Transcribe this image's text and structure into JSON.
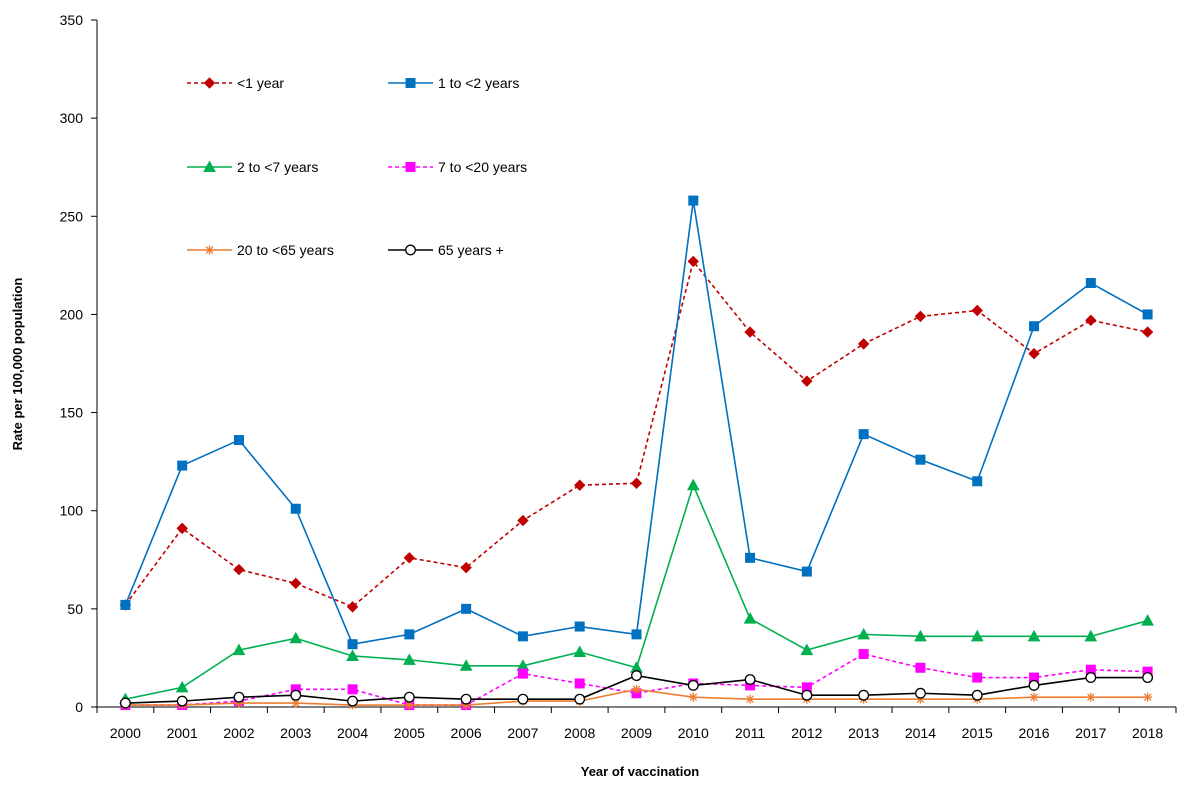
{
  "chart_data": {
    "type": "line",
    "title": "",
    "xlabel": "Year of vaccination",
    "ylabel": "Rate per 100,000 population",
    "ylim": [
      0,
      350
    ],
    "yticks": [
      0,
      50,
      100,
      150,
      200,
      250,
      300,
      350
    ],
    "categories": [
      "2000",
      "2001",
      "2002",
      "2003",
      "2004",
      "2005",
      "2006",
      "2007",
      "2008",
      "2009",
      "2010",
      "2011",
      "2012",
      "2013",
      "2014",
      "2015",
      "2016",
      "2017",
      "2018"
    ],
    "grid": false,
    "legend_position": "top-left",
    "series": [
      {
        "name": "<1 year",
        "color": "#C00000",
        "dash": "dashed",
        "marker": "diamond",
        "values": [
          52,
          91,
          70,
          63,
          51,
          76,
          71,
          95,
          113,
          114,
          227,
          191,
          166,
          185,
          199,
          202,
          180,
          197,
          191
        ]
      },
      {
        "name": "1 to <2 years",
        "color": "#0070C0",
        "dash": "solid",
        "marker": "square",
        "values": [
          52,
          123,
          136,
          101,
          32,
          37,
          50,
          36,
          41,
          37,
          258,
          76,
          69,
          139,
          126,
          115,
          194,
          216,
          200
        ]
      },
      {
        "name": "2 to <7 years",
        "color": "#00B050",
        "dash": "solid",
        "marker": "triangle",
        "values": [
          4,
          10,
          29,
          35,
          26,
          24,
          21,
          21,
          28,
          20,
          113,
          45,
          29,
          37,
          36,
          36,
          36,
          36,
          44
        ]
      },
      {
        "name": "7 to <20 years",
        "color": "#FF00FF",
        "dash": "dashed",
        "marker": "square",
        "values": [
          1,
          1,
          3,
          9,
          9,
          1,
          1,
          17,
          12,
          7,
          12,
          11,
          10,
          27,
          20,
          15,
          15,
          19,
          18
        ]
      },
      {
        "name": "20 to <65 years",
        "color": "#ED7D31",
        "dash": "solid",
        "marker": "star",
        "values": [
          1,
          1,
          2,
          2,
          1,
          1,
          1,
          3,
          3,
          9,
          5,
          4,
          4,
          4,
          4,
          4,
          5,
          5,
          5
        ]
      },
      {
        "name": "65 years +",
        "color": "#000000",
        "dash": "solid",
        "marker": "circle-open",
        "values": [
          2,
          3,
          5,
          6,
          3,
          5,
          4,
          4,
          4,
          16,
          11,
          14,
          6,
          6,
          7,
          6,
          11,
          15,
          15
        ]
      }
    ]
  }
}
